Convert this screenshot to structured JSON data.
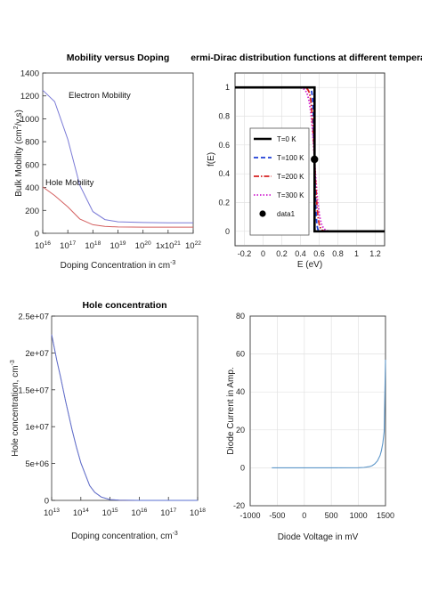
{
  "chart_data": [
    {
      "type": "line",
      "title": "Mobility versus Doping",
      "xlabel": "Doping Concentration in cm",
      "xlabel_sup": "-3",
      "ylabel": "Bulk Mobility (cm",
      "ylabel_sup": "2",
      "ylabel_tail": "/v.s)",
      "xscale": "log",
      "xlim": [
        1e+16,
        1e+22
      ],
      "ylim": [
        0,
        1400
      ],
      "grid": false,
      "xtick_labels": [
        {
          "base": "10",
          "exp": "16"
        },
        {
          "base": "10",
          "exp": "17"
        },
        {
          "base": "10",
          "exp": "18"
        },
        {
          "base": "10",
          "exp": "19"
        },
        {
          "base": "10",
          "exp": "20"
        },
        {
          "base": "1x10",
          "exp": "21"
        },
        {
          "base": "10",
          "exp": "22"
        }
      ],
      "ytick_labels": [
        "0",
        "200",
        "400",
        "600",
        "800",
        "1000",
        "1200",
        "1400"
      ],
      "annotations": [
        "Electron Mobility",
        "Hole Mobility"
      ],
      "series": [
        {
          "color": "#7a7ad6",
          "x": [
            1e+16,
            3e+16,
            1e+17,
            3e+17,
            1e+18,
            3e+18,
            1e+19,
            1e+20,
            1e+21,
            1e+22
          ],
          "values": [
            1250,
            1150,
            820,
            420,
            190,
            120,
            100,
            94,
            92,
            92
          ]
        },
        {
          "color": "#d46060",
          "x": [
            1e+16,
            3e+16,
            1e+17,
            3e+17,
            1e+18,
            3e+18,
            1e+19,
            1e+20,
            1e+21,
            1e+22
          ],
          "values": [
            405,
            330,
            230,
            125,
            75,
            60,
            55,
            54,
            54,
            54
          ]
        }
      ]
    },
    {
      "type": "line",
      "title": "ermi-Dirac distribution functions at different temperatu",
      "xlabel": "E (eV)",
      "ylabel": "f(E)",
      "xlim": [
        -0.3,
        1.3
      ],
      "ylim": [
        -0.1,
        1.1
      ],
      "grid": true,
      "legend_position": "left",
      "xtick_labels": [
        "-0.2",
        "0",
        "0.2",
        "0.4",
        "0.6",
        "0.8",
        "1",
        "1.2"
      ],
      "ytick_labels": [
        "0",
        "0.2",
        "0.4",
        "0.6",
        "0.8",
        "1"
      ],
      "series": [
        {
          "name": "T=0 K",
          "color": "#000000",
          "style": "solid",
          "kT": 0
        },
        {
          "name": "T=100 K",
          "color": "#1f3fd6",
          "style": "dashed",
          "kT": 0.00862
        },
        {
          "name": "T=200 K",
          "color": "#d62020",
          "style": "dashdot",
          "kT": 0.01723
        },
        {
          "name": "T=300 K",
          "color": "#d020d0",
          "style": "dotted",
          "kT": 0.02585
        }
      ],
      "fermi_level": 0.55,
      "marker": {
        "name": "data1",
        "x": 0.55,
        "y": 0.5,
        "color": "#000000"
      }
    },
    {
      "type": "line",
      "title": "Hole concentration",
      "xlabel": "Doping concentration, cm",
      "xlabel_sup": "-3",
      "ylabel": "Hole concentration, cm",
      "ylabel_sup": "-3",
      "xscale": "log",
      "xlim": [
        10000000000000.0,
        1e+18
      ],
      "ylim": [
        0,
        25000000.0
      ],
      "grid": false,
      "xtick_labels": [
        {
          "base": "10",
          "exp": "13"
        },
        {
          "base": "10",
          "exp": "14"
        },
        {
          "base": "10",
          "exp": "15"
        },
        {
          "base": "10",
          "exp": "16"
        },
        {
          "base": "10",
          "exp": "17"
        },
        {
          "base": "10",
          "exp": "18"
        }
      ],
      "ytick_labels": [
        "0",
        "5e+06",
        "1e+07",
        "1.5e+07",
        "2e+07",
        "2.5e+07"
      ],
      "series": [
        {
          "color": "#5a6fd0",
          "x": [
            10000000000000.0,
            15000000000000.0,
            20000000000000.0,
            30000000000000.0,
            50000000000000.0,
            70000000000000.0,
            100000000000000.0,
            200000000000000.0,
            300000000000000.0,
            500000000000000.0,
            1000000000000000.0,
            2000000000000000.0,
            5000000000000000.0,
            1e+16,
            1e+17,
            1e+18
          ],
          "values": [
            22500000.0,
            19000000.0,
            16800000.0,
            13500000.0,
            9600000.0,
            7300000.0,
            5100000.0,
            2000000.0,
            1100000.0,
            460000.0,
            110000.0,
            35000.0,
            10000.0,
            3000.0,
            200,
            20
          ]
        }
      ]
    },
    {
      "type": "line",
      "title": "",
      "xlabel": "Diode Voltage in mV",
      "ylabel": "Diode Current in Amp.",
      "xlim": [
        -1000,
        1500
      ],
      "ylim": [
        -20,
        80
      ],
      "grid": true,
      "xtick_labels": [
        "-1000",
        "-500",
        "0",
        "500",
        "1000",
        "1500"
      ],
      "ytick_labels": [
        "-20",
        "0",
        "20",
        "40",
        "60",
        "80"
      ],
      "series": [
        {
          "color": "#5b95c8",
          "x": [
            -600,
            0,
            600,
            1000,
            1100,
            1200,
            1250,
            1300,
            1350,
            1400,
            1425,
            1450,
            1475,
            1500
          ],
          "values": [
            0,
            0,
            0,
            0.05,
            0.2,
            0.6,
            1.1,
            2.0,
            3.6,
            6.5,
            9,
            13,
            19,
            57
          ]
        }
      ]
    }
  ]
}
